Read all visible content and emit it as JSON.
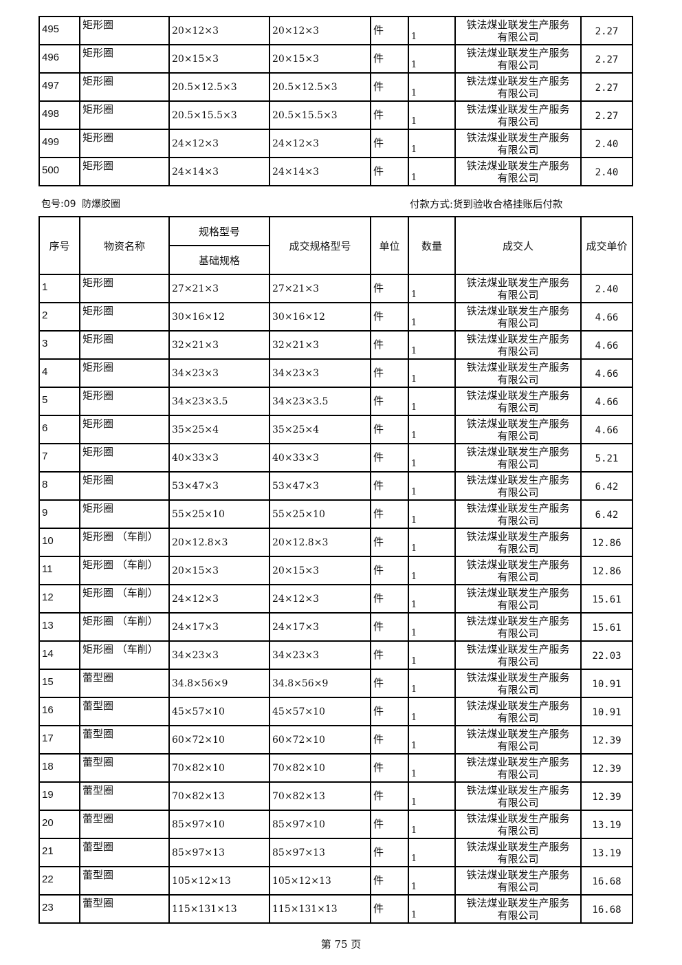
{
  "top_rows": [
    {
      "seq": "495",
      "name": "矩形圈",
      "spec": "20×12×3",
      "deal_spec": "20×12×3",
      "unit": "件",
      "qty": "1",
      "vendor": "铁法煤业联发生产服务有限公司",
      "price": "2.27"
    },
    {
      "seq": "496",
      "name": "矩形圈",
      "spec": "20×15×3",
      "deal_spec": "20×15×3",
      "unit": "件",
      "qty": "1",
      "vendor": "铁法煤业联发生产服务有限公司",
      "price": "2.27"
    },
    {
      "seq": "497",
      "name": "矩形圈",
      "spec": "20.5×12.5×3",
      "deal_spec": "20.5×12.5×3",
      "unit": "件",
      "qty": "1",
      "vendor": "铁法煤业联发生产服务有限公司",
      "price": "2.27"
    },
    {
      "seq": "498",
      "name": "矩形圈",
      "spec": "20.5×15.5×3",
      "deal_spec": "20.5×15.5×3",
      "unit": "件",
      "qty": "1",
      "vendor": "铁法煤业联发生产服务有限公司",
      "price": "2.27"
    },
    {
      "seq": "499",
      "name": "矩形圈",
      "spec": "24×12×3",
      "deal_spec": "24×12×3",
      "unit": "件",
      "qty": "1",
      "vendor": "铁法煤业联发生产服务有限公司",
      "price": "2.40"
    },
    {
      "seq": "500",
      "name": "矩形圈",
      "spec": "24×14×3",
      "deal_spec": "24×14×3",
      "unit": "件",
      "qty": "1",
      "vendor": "铁法煤业联发生产服务有限公司",
      "price": "2.40"
    }
  ],
  "package": {
    "label": "包号:09",
    "name": "防爆胶圈",
    "payment": "付款方式:货到验收合格挂账后付款"
  },
  "headers": {
    "seq": "序号",
    "name": "物资名称",
    "spec_group": "规格型号",
    "spec": "基础规格",
    "deal_spec": "成交规格型号",
    "unit": "单位",
    "qty": "数量",
    "vendor": "成交人",
    "price": "成交单价"
  },
  "rows": [
    {
      "seq": "1",
      "name": "矩形圈",
      "spec": "27×21×3",
      "deal_spec": "27×21×3",
      "unit": "件",
      "qty": "1",
      "vendor": "铁法煤业联发生产服务有限公司",
      "price": "2.40"
    },
    {
      "seq": "2",
      "name": "矩形圈",
      "spec": "30×16×12",
      "deal_spec": "30×16×12",
      "unit": "件",
      "qty": "1",
      "vendor": "铁法煤业联发生产服务有限公司",
      "price": "4.66"
    },
    {
      "seq": "3",
      "name": "矩形圈",
      "spec": "32×21×3",
      "deal_spec": "32×21×3",
      "unit": "件",
      "qty": "1",
      "vendor": "铁法煤业联发生产服务有限公司",
      "price": "4.66"
    },
    {
      "seq": "4",
      "name": "矩形圈",
      "spec": "34×23×3",
      "deal_spec": "34×23×3",
      "unit": "件",
      "qty": "1",
      "vendor": "铁法煤业联发生产服务有限公司",
      "price": "4.66"
    },
    {
      "seq": "5",
      "name": "矩形圈",
      "spec": "34×23×3.5",
      "deal_spec": "34×23×3.5",
      "unit": "件",
      "qty": "1",
      "vendor": "铁法煤业联发生产服务有限公司",
      "price": "4.66"
    },
    {
      "seq": "6",
      "name": "矩形圈",
      "spec": "35×25×4",
      "deal_spec": "35×25×4",
      "unit": "件",
      "qty": "1",
      "vendor": "铁法煤业联发生产服务有限公司",
      "price": "4.66"
    },
    {
      "seq": "7",
      "name": "矩形圈",
      "spec": "40×33×3",
      "deal_spec": "40×33×3",
      "unit": "件",
      "qty": "1",
      "vendor": "铁法煤业联发生产服务有限公司",
      "price": "5.21"
    },
    {
      "seq": "8",
      "name": "矩形圈",
      "spec": "53×47×3",
      "deal_spec": "53×47×3",
      "unit": "件",
      "qty": "1",
      "vendor": "铁法煤业联发生产服务有限公司",
      "price": "6.42"
    },
    {
      "seq": "9",
      "name": "矩形圈",
      "spec": "55×25×10",
      "deal_spec": "55×25×10",
      "unit": "件",
      "qty": "1",
      "vendor": "铁法煤业联发生产服务有限公司",
      "price": "6.42"
    },
    {
      "seq": "10",
      "name": "矩形圈 （车削）",
      "spec": "20×12.8×3",
      "deal_spec": "20×12.8×3",
      "unit": "件",
      "qty": "1",
      "vendor": "铁法煤业联发生产服务有限公司",
      "price": "12.86"
    },
    {
      "seq": "11",
      "name": "矩形圈 （车削）",
      "spec": "20×15×3",
      "deal_spec": "20×15×3",
      "unit": "件",
      "qty": "1",
      "vendor": "铁法煤业联发生产服务有限公司",
      "price": "12.86"
    },
    {
      "seq": "12",
      "name": "矩形圈 （车削）",
      "spec": "24×12×3",
      "deal_spec": "24×12×3",
      "unit": "件",
      "qty": "1",
      "vendor": "铁法煤业联发生产服务有限公司",
      "price": "15.61"
    },
    {
      "seq": "13",
      "name": "矩形圈 （车削）",
      "spec": "24×17×3",
      "deal_spec": "24×17×3",
      "unit": "件",
      "qty": "1",
      "vendor": "铁法煤业联发生产服务有限公司",
      "price": "15.61"
    },
    {
      "seq": "14",
      "name": "矩形圈 （车削）",
      "spec": "34×23×3",
      "deal_spec": "34×23×3",
      "unit": "件",
      "qty": "1",
      "vendor": "铁法煤业联发生产服务有限公司",
      "price": "22.03"
    },
    {
      "seq": "15",
      "name": "蕾型圈",
      "spec": "34.8×56×9",
      "deal_spec": "34.8×56×9",
      "unit": "件",
      "qty": "1",
      "vendor": "铁法煤业联发生产服务有限公司",
      "price": "10.91"
    },
    {
      "seq": "16",
      "name": "蕾型圈",
      "spec": "45×57×10",
      "deal_spec": "45×57×10",
      "unit": "件",
      "qty": "1",
      "vendor": "铁法煤业联发生产服务有限公司",
      "price": "10.91"
    },
    {
      "seq": "17",
      "name": "蕾型圈",
      "spec": "60×72×10",
      "deal_spec": "60×72×10",
      "unit": "件",
      "qty": "1",
      "vendor": "铁法煤业联发生产服务有限公司",
      "price": "12.39"
    },
    {
      "seq": "18",
      "name": "蕾型圈",
      "spec": "70×82×10",
      "deal_spec": "70×82×10",
      "unit": "件",
      "qty": "1",
      "vendor": "铁法煤业联发生产服务有限公司",
      "price": "12.39"
    },
    {
      "seq": "19",
      "name": "蕾型圈",
      "spec": "70×82×13",
      "deal_spec": "70×82×13",
      "unit": "件",
      "qty": "1",
      "vendor": "铁法煤业联发生产服务有限公司",
      "price": "12.39"
    },
    {
      "seq": "20",
      "name": "蕾型圈",
      "spec": "85×97×10",
      "deal_spec": "85×97×10",
      "unit": "件",
      "qty": "1",
      "vendor": "铁法煤业联发生产服务有限公司",
      "price": "13.19"
    },
    {
      "seq": "21",
      "name": "蕾型圈",
      "spec": "85×97×13",
      "deal_spec": "85×97×13",
      "unit": "件",
      "qty": "1",
      "vendor": "铁法煤业联发生产服务有限公司",
      "price": "13.19"
    },
    {
      "seq": "22",
      "name": "蕾型圈",
      "spec": "105×12×13",
      "deal_spec": "105×12×13",
      "unit": "件",
      "qty": "1",
      "vendor": "铁法煤业联发生产服务有限公司",
      "price": "16.68"
    },
    {
      "seq": "23",
      "name": "蕾型圈",
      "spec": "115×131×13",
      "deal_spec": "115×131×13",
      "unit": "件",
      "qty": "1",
      "vendor": "铁法煤业联发生产服务有限公司",
      "price": "16.68"
    }
  ],
  "footer": "第 75 页"
}
